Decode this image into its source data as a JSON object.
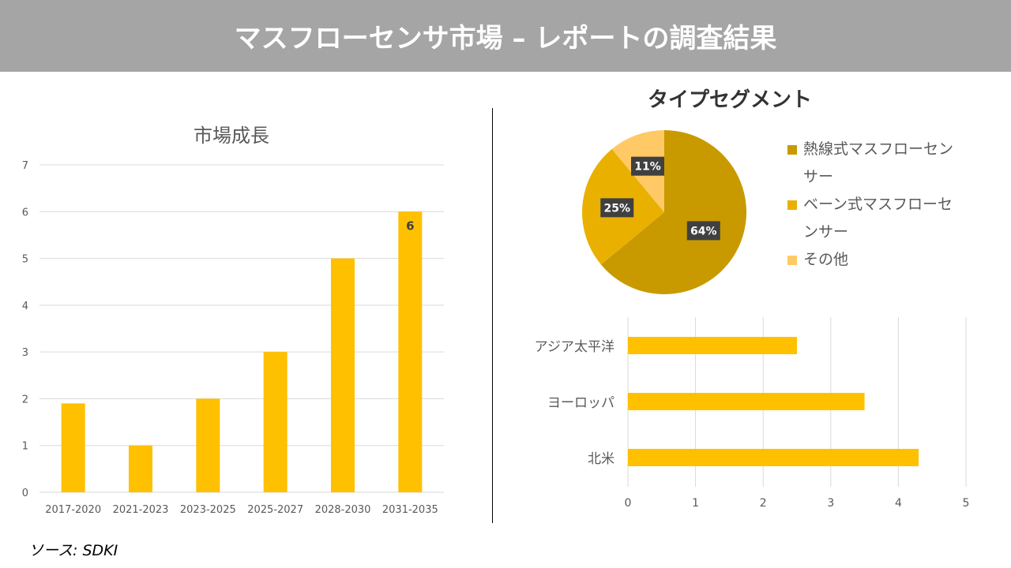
{
  "header": {
    "title": "マスフローセンサ市場 – レポートの調査結果"
  },
  "source": "ソース: SDKI",
  "chart_data": [
    {
      "type": "bar",
      "title": "市場成長",
      "categories": [
        "2017-2020",
        "2021-2023",
        "2023-2025",
        "2025-2027",
        "2028-2030",
        "2031-2035"
      ],
      "values": [
        1.9,
        1,
        2,
        3,
        5,
        6
      ],
      "ylim": [
        0,
        7
      ],
      "yticks": [
        "0",
        "1",
        "2",
        "3",
        "4",
        "5",
        "6",
        "7"
      ],
      "data_labels": {
        "5": "6"
      },
      "grid": true,
      "color": "#FFC000"
    },
    {
      "type": "pie",
      "title": "タイプセグメント",
      "labels": [
        "熱線式マスフローセンサー",
        "ベーン式マスフローセンサー",
        "その他"
      ],
      "values": [
        64,
        25,
        11
      ],
      "value_labels": [
        "64%",
        "25%",
        "11%"
      ],
      "colors": [
        "#C89A00",
        "#EAB000",
        "#FFC966"
      ],
      "legend": "right"
    },
    {
      "type": "bar",
      "orientation": "horizontal",
      "categories": [
        "アジア太平洋",
        "ヨーロッパ",
        "北米"
      ],
      "values": [
        2.5,
        3.5,
        4.3
      ],
      "xlim": [
        0,
        5
      ],
      "xticks": [
        "0",
        "1",
        "2",
        "3",
        "4",
        "5"
      ],
      "grid": true,
      "color": "#FFC000"
    }
  ]
}
